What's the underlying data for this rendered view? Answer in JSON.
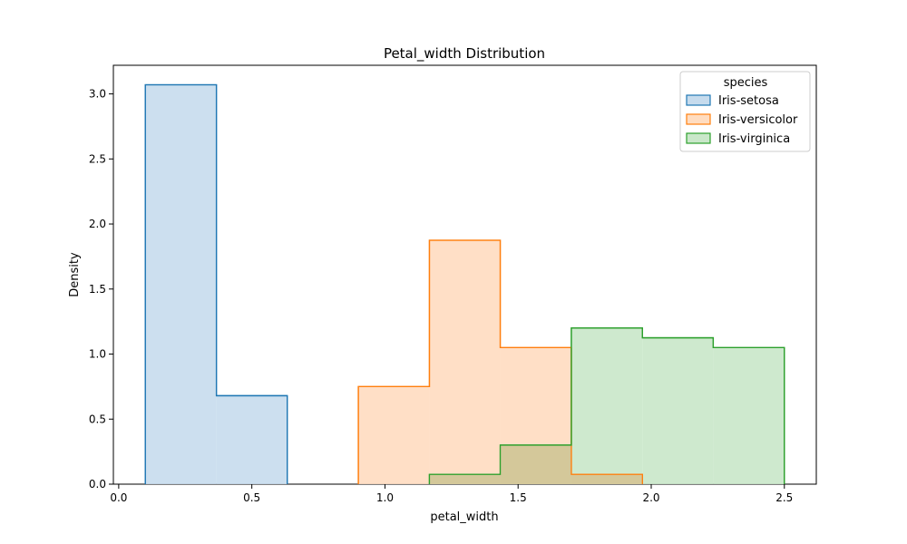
{
  "chart_data": {
    "type": "histogram",
    "title": "Petal_width Distribution",
    "xlabel": "petal_width",
    "ylabel": "Density",
    "xlim": [
      -0.02,
      2.62
    ],
    "ylim": [
      0,
      3.22
    ],
    "x_ticks": [
      0.0,
      0.5,
      1.0,
      1.5,
      2.0,
      2.5
    ],
    "x_tick_labels": [
      "0.0",
      "0.5",
      "1.0",
      "1.5",
      "2.0",
      "2.5"
    ],
    "y_ticks": [
      0.0,
      0.5,
      1.0,
      1.5,
      2.0,
      2.5,
      3.0
    ],
    "y_tick_labels": [
      "0.0",
      "0.5",
      "1.0",
      "1.5",
      "2.0",
      "2.5",
      "3.0"
    ],
    "grid": false,
    "legend": {
      "title": "species",
      "position": "top-right"
    },
    "series": [
      {
        "name": "Iris-setosa",
        "color": "#1f77b4",
        "fill": "#c6dbed",
        "bins": [
          {
            "x0": 0.1,
            "x1": 0.367,
            "y": 3.07
          },
          {
            "x0": 0.367,
            "x1": 0.633,
            "y": 0.68
          }
        ]
      },
      {
        "name": "Iris-versicolor",
        "color": "#ff7f0e",
        "fill": "#ffdcc0",
        "bins": [
          {
            "x0": 0.9,
            "x1": 1.167,
            "y": 0.75
          },
          {
            "x0": 1.167,
            "x1": 1.433,
            "y": 1.875
          },
          {
            "x0": 1.433,
            "x1": 1.7,
            "y": 1.05
          },
          {
            "x0": 1.7,
            "x1": 1.967,
            "y": 0.075
          }
        ]
      },
      {
        "name": "Iris-virginica",
        "color": "#2ca02c",
        "fill": "#c9e7c9",
        "bins": [
          {
            "x0": 1.167,
            "x1": 1.433,
            "y": 0.075
          },
          {
            "x0": 1.433,
            "x1": 1.7,
            "y": 0.3
          },
          {
            "x0": 1.7,
            "x1": 1.967,
            "y": 1.2
          },
          {
            "x0": 1.967,
            "x1": 2.233,
            "y": 1.125
          },
          {
            "x0": 2.233,
            "x1": 2.5,
            "y": 1.05
          }
        ]
      }
    ]
  }
}
